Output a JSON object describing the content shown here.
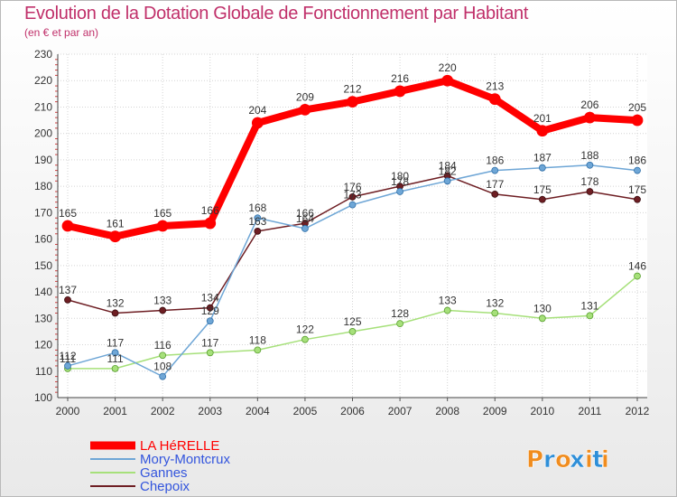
{
  "header": {
    "title": "Evolution de la Dotation Globale de Fonctionnement par Habitant",
    "subtitle": "(en € et par an)"
  },
  "brand": {
    "text": "Proxiti",
    "letters": [
      "P",
      "r",
      "o",
      "x",
      "i",
      "t",
      "i"
    ],
    "colors": [
      "#f08c1e",
      "#2f8fd8",
      "#f08c1e",
      "#2f8fd8",
      "#f08c1e",
      "#2f8fd8",
      "#f08c1e"
    ]
  },
  "chart_data": {
    "type": "line",
    "title": "Evolution de la Dotation Globale de Fonctionnement par Habitant",
    "subtitle": "(en € et par an)",
    "xlabel": "",
    "ylabel": "",
    "x": [
      "2000",
      "2001",
      "2002",
      "2003",
      "2004",
      "2005",
      "2006",
      "2007",
      "2008",
      "2009",
      "2010",
      "2011",
      "2012"
    ],
    "ylim": [
      100,
      230
    ],
    "yticks": [
      100,
      110,
      120,
      130,
      140,
      150,
      160,
      170,
      180,
      190,
      200,
      210,
      220,
      230
    ],
    "grid": true,
    "legend_position": "bottom-left",
    "series": [
      {
        "name": "Chepoix",
        "color": "#6e1e23",
        "values": [
          137,
          132,
          133,
          134,
          163,
          166,
          176,
          180,
          184,
          177,
          175,
          178,
          175
        ]
      },
      {
        "name": "Gannes",
        "color": "#a6e07a",
        "values": [
          111,
          111,
          116,
          117,
          118,
          122,
          125,
          128,
          133,
          132,
          130,
          131,
          146
        ]
      },
      {
        "name": "Mory-Montcrux",
        "color": "#6ea6d6",
        "values": [
          112,
          117,
          108,
          129,
          168,
          164,
          173,
          178,
          182,
          186,
          187,
          188,
          186
        ]
      },
      {
        "name": "LA HéRELLE",
        "color": "#ff0000",
        "values": [
          165,
          161,
          165,
          166,
          204,
          209,
          212,
          216,
          220,
          213,
          201,
          206,
          205
        ]
      }
    ],
    "legend": [
      {
        "name": "LA HéRELLE",
        "color": "#ff0000",
        "text_color": "#ff0000"
      },
      {
        "name": "Mory-Montcrux",
        "color": "#6ea6d6",
        "text_color": "#3355dd"
      },
      {
        "name": "Gannes",
        "color": "#a6e07a",
        "text_color": "#3355dd"
      },
      {
        "name": "Chepoix",
        "color": "#6e1e23",
        "text_color": "#3355dd"
      }
    ]
  }
}
